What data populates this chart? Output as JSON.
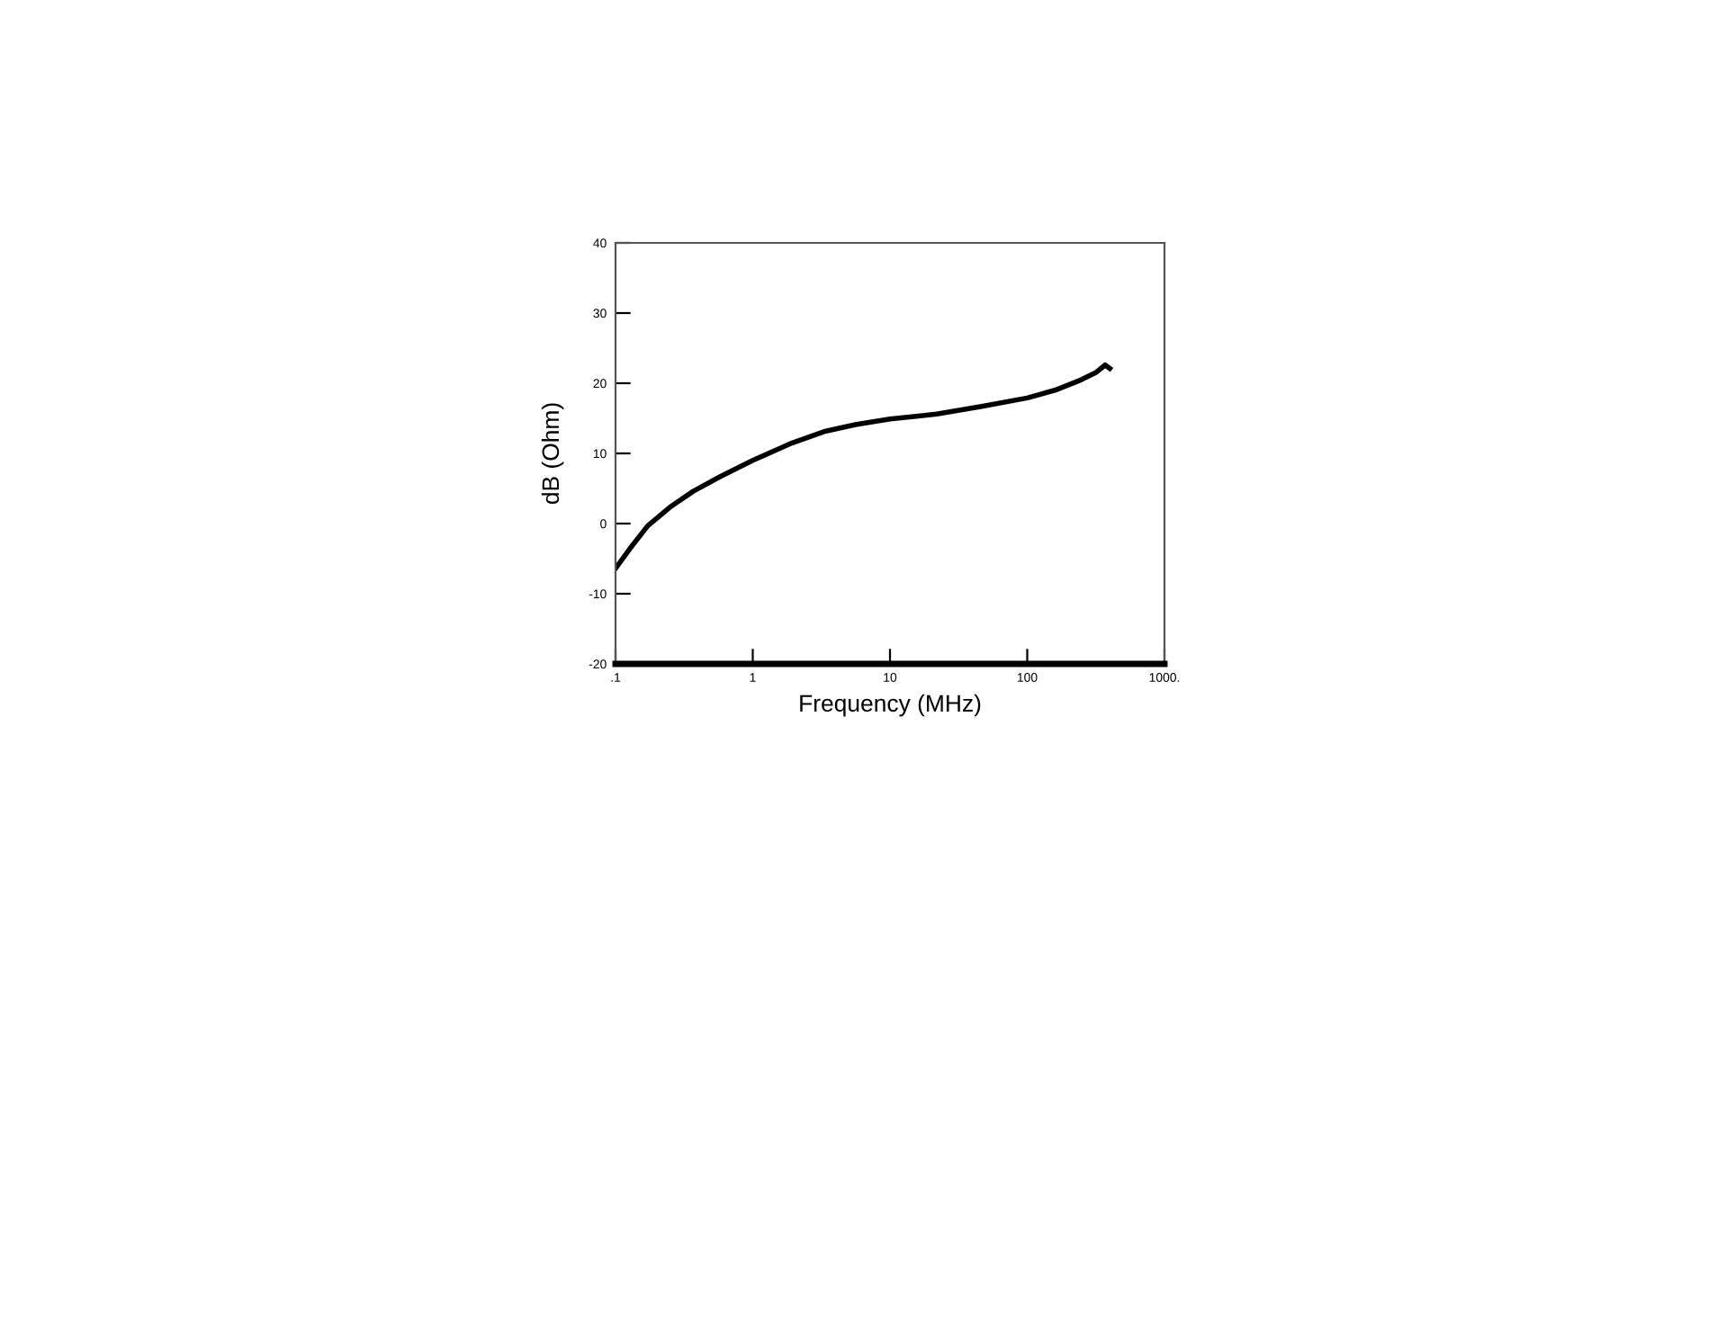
{
  "chart_data": {
    "type": "line",
    "xlabel": "Frequency (MHz)",
    "ylabel": "dB (Ohm)",
    "log": "x",
    "xlim": [
      0.1,
      1000
    ],
    "xticks": [
      {
        "value": 0.1,
        "label": ".1"
      },
      1,
      10,
      100,
      {
        "value": 1000,
        "label": "1000."
      }
    ],
    "ylim": [
      -20,
      40
    ],
    "yticks": [
      -20,
      -10,
      0,
      10,
      20,
      30,
      40
    ],
    "grid": false,
    "marker": "none",
    "line_style": "solid",
    "series": [
      {
        "color": "#000000",
        "x": [
          0.1,
          0.127,
          0.172,
          0.248,
          0.368,
          0.58,
          1,
          1.94,
          3.3,
          5.6,
          10,
          21.9,
          46.6,
          100,
          159,
          248,
          315,
          370,
          400
        ],
        "values": [
          -6.4,
          -3.6,
          -0.3,
          2.3,
          4.6,
          6.7,
          9.0,
          11.5,
          13.1,
          14.1,
          14.9,
          15.6,
          16.7,
          17.9,
          19.0,
          20.5,
          21.5,
          22.6,
          22.1
        ]
      }
    ]
  }
}
